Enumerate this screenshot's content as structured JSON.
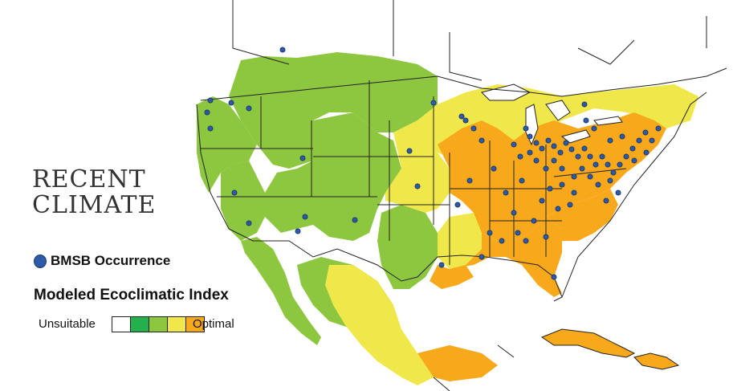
{
  "title": {
    "line1": "RECENT",
    "line2": "CLIMATE"
  },
  "occurrence_legend": {
    "label": "BMSB Occurrence",
    "dot_color": "#2e5ba8"
  },
  "index_legend": {
    "title": "Modeled Ecoclimatic Index",
    "min_label": "Unsuitable",
    "max_label": "Optimal",
    "classes": [
      "#ffffff",
      "#22b14c",
      "#8dc63f",
      "#f0e84a",
      "#f7a81b"
    ]
  },
  "map_colors": {
    "unsuitable": "#ffffff",
    "low": "#8dc63f",
    "moderate": "#f0e84a",
    "optimal": "#f7a81b",
    "water": "#ffffff",
    "borders": "#222222"
  }
}
